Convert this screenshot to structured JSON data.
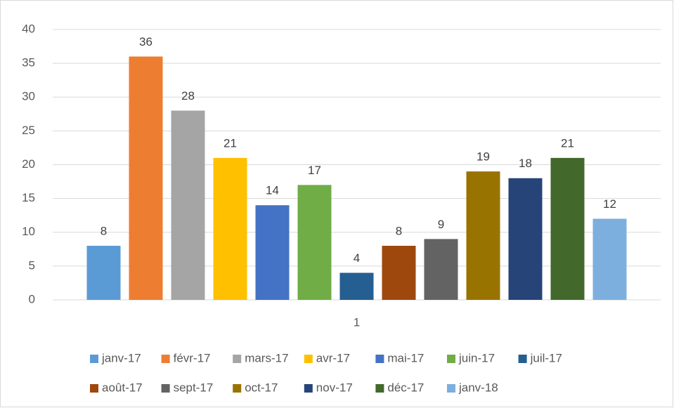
{
  "chart_data": {
    "type": "bar",
    "categories": [
      "1"
    ],
    "series": [
      {
        "name": "janv-17",
        "color": "#5b9bd5",
        "values": [
          8
        ]
      },
      {
        "name": "févr-17",
        "color": "#ed7d31",
        "values": [
          36
        ]
      },
      {
        "name": "mars-17",
        "color": "#a5a5a5",
        "values": [
          28
        ]
      },
      {
        "name": "avr-17",
        "color": "#ffc000",
        "values": [
          21
        ]
      },
      {
        "name": "mai-17",
        "color": "#4472c4",
        "values": [
          14
        ]
      },
      {
        "name": "juin-17",
        "color": "#70ad47",
        "values": [
          17
        ]
      },
      {
        "name": "juil-17",
        "color": "#255e91",
        "values": [
          4
        ]
      },
      {
        "name": "août-17",
        "color": "#9e480e",
        "values": [
          8
        ]
      },
      {
        "name": "sept-17",
        "color": "#636363",
        "values": [
          9
        ]
      },
      {
        "name": "oct-17",
        "color": "#997300",
        "values": [
          19
        ]
      },
      {
        "name": "nov-17",
        "color": "#264478",
        "values": [
          18
        ]
      },
      {
        "name": "déc-17",
        "color": "#43682b",
        "values": [
          21
        ]
      },
      {
        "name": "janv-18",
        "color": "#7cafdd",
        "values": [
          12
        ]
      }
    ],
    "ylim": [
      0,
      40
    ],
    "yticks": [
      0,
      5,
      10,
      15,
      20,
      25,
      30,
      35,
      40
    ],
    "grid": true,
    "legend": "bottom"
  }
}
